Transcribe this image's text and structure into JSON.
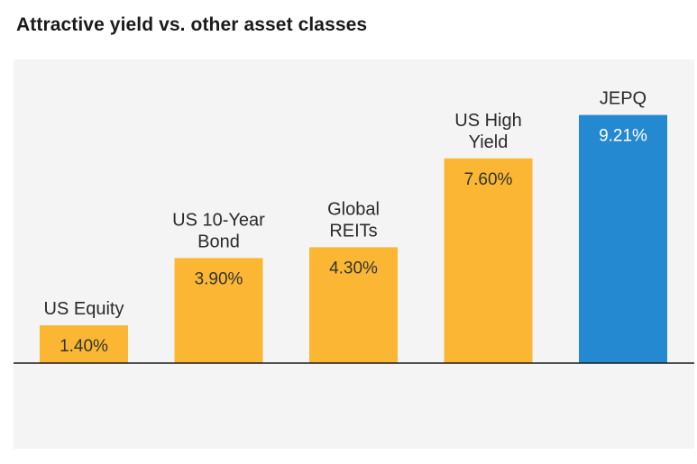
{
  "title": "Attractive yield vs. other asset classes",
  "colors": {
    "default_bar": "#fbb733",
    "highlight_bar": "#2589d1",
    "value_text_default": "#333333",
    "value_text_highlight": "#ffffff",
    "category_text": "#2a2a2a",
    "baseline": "#1a1a1a",
    "panel_background": "#f4f4f4"
  },
  "chart_data": {
    "type": "bar",
    "title": "Attractive yield vs. other asset classes",
    "xlabel": "",
    "ylabel": "",
    "grid": false,
    "legend": "none",
    "ylim": [
      0,
      10
    ],
    "categories": [
      [
        "US Equity"
      ],
      [
        "US 10-Year",
        "Bond"
      ],
      [
        "Global",
        "REITs"
      ],
      [
        "US High",
        "Yield"
      ],
      [
        "JEPQ"
      ]
    ],
    "values": [
      1.4,
      3.9,
      4.3,
      7.6,
      9.21
    ],
    "value_labels": [
      "1.40%",
      "3.90%",
      "4.30%",
      "7.60%",
      "9.21%"
    ],
    "highlight_index": 4
  }
}
